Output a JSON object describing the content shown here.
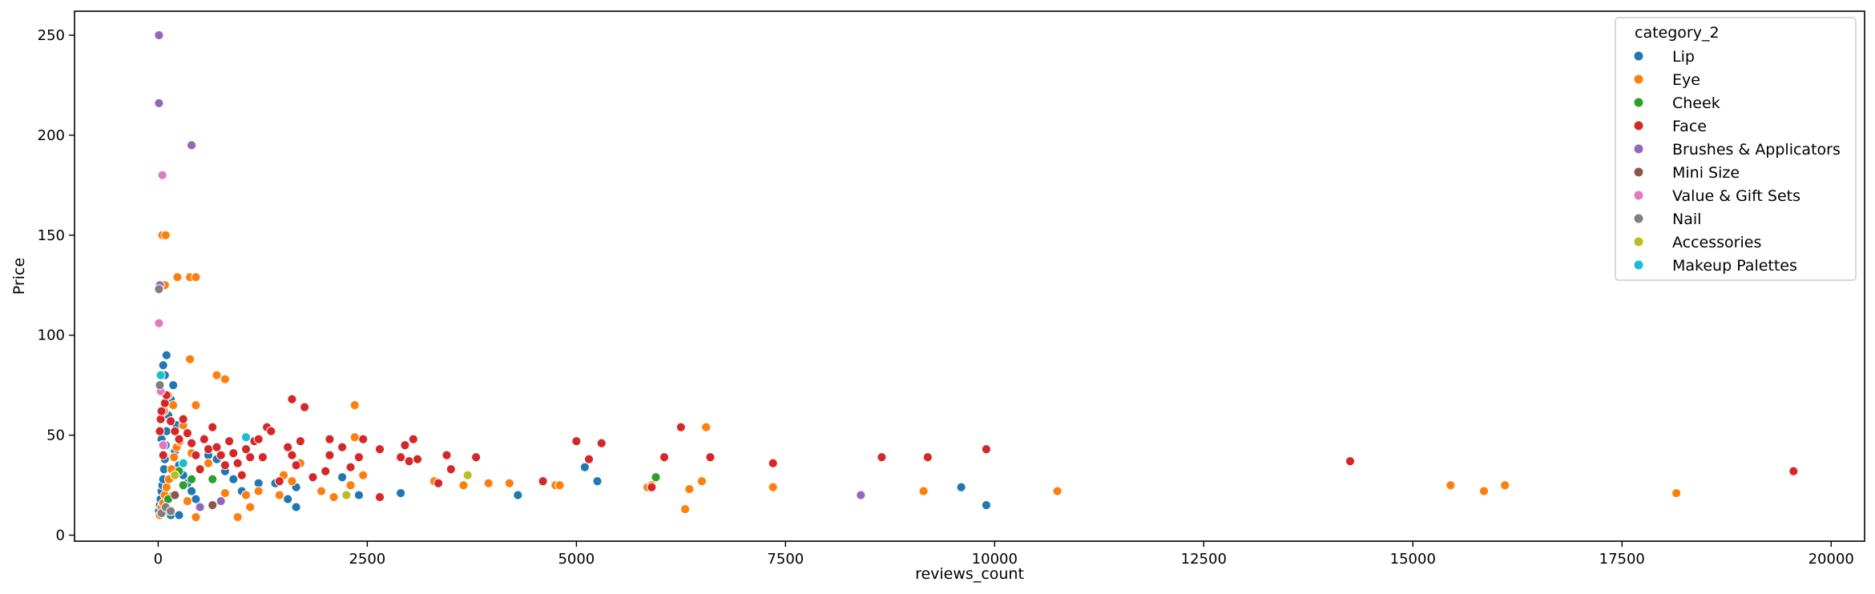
{
  "chart_data": {
    "type": "scatter",
    "title": "",
    "xlabel": "reviews_count",
    "ylabel": "Price",
    "xlim": [
      -1000,
      20400
    ],
    "ylim": [
      -3,
      262
    ],
    "xticks": [
      0,
      2500,
      5000,
      7500,
      10000,
      12500,
      15000,
      17500,
      20000
    ],
    "yticks": [
      0,
      50,
      100,
      150,
      200,
      250
    ],
    "grid": false,
    "legend": {
      "title": "category_2",
      "placement": "top-right"
    },
    "series": [
      {
        "name": "Lip",
        "color": "#1f77b4",
        "points": [
          [
            10,
            12
          ],
          [
            20,
            15
          ],
          [
            30,
            18
          ],
          [
            40,
            22
          ],
          [
            50,
            25
          ],
          [
            60,
            28
          ],
          [
            70,
            33
          ],
          [
            80,
            38
          ],
          [
            90,
            45
          ],
          [
            100,
            52
          ],
          [
            120,
            60
          ],
          [
            150,
            68
          ],
          [
            180,
            75
          ],
          [
            60,
            85
          ],
          [
            100,
            90
          ],
          [
            200,
            42
          ],
          [
            250,
            35
          ],
          [
            300,
            30
          ],
          [
            350,
            26
          ],
          [
            400,
            22
          ],
          [
            450,
            18
          ],
          [
            500,
            14
          ],
          [
            600,
            40
          ],
          [
            700,
            38
          ],
          [
            800,
            32
          ],
          [
            900,
            28
          ],
          [
            1000,
            22
          ],
          [
            1200,
            26
          ],
          [
            1400,
            26
          ],
          [
            1550,
            18
          ],
          [
            1650,
            14
          ],
          [
            1650,
            24
          ],
          [
            2200,
            29
          ],
          [
            2400,
            20
          ],
          [
            2900,
            21
          ],
          [
            4300,
            20
          ],
          [
            5100,
            34
          ],
          [
            5250,
            27
          ],
          [
            9600,
            24
          ],
          [
            9900,
            15
          ],
          [
            150,
            10
          ],
          [
            220,
            55
          ],
          [
            80,
            80
          ],
          [
            40,
            48
          ],
          [
            250,
            10
          ]
        ]
      },
      {
        "name": "Eye",
        "color": "#ff7f0e",
        "points": [
          [
            20,
            10
          ],
          [
            40,
            14
          ],
          [
            60,
            16
          ],
          [
            80,
            20
          ],
          [
            100,
            24
          ],
          [
            130,
            28
          ],
          [
            160,
            33
          ],
          [
            190,
            39
          ],
          [
            220,
            44
          ],
          [
            260,
            47
          ],
          [
            300,
            55
          ],
          [
            70,
            62
          ],
          [
            120,
            70
          ],
          [
            180,
            65
          ],
          [
            380,
            88
          ],
          [
            700,
            80
          ],
          [
            800,
            78
          ],
          [
            450,
            65
          ],
          [
            80,
            125
          ],
          [
            50,
            150
          ],
          [
            90,
            150
          ],
          [
            230,
            129
          ],
          [
            380,
            129
          ],
          [
            450,
            129
          ],
          [
            400,
            41
          ],
          [
            600,
            36
          ],
          [
            800,
            21
          ],
          [
            950,
            9
          ],
          [
            1050,
            20
          ],
          [
            1100,
            14
          ],
          [
            1200,
            22
          ],
          [
            1450,
            20
          ],
          [
            1500,
            30
          ],
          [
            1600,
            27
          ],
          [
            1700,
            36
          ],
          [
            1950,
            22
          ],
          [
            2100,
            19
          ],
          [
            2300,
            25
          ],
          [
            2350,
            65
          ],
          [
            2350,
            49
          ],
          [
            2450,
            30
          ],
          [
            3300,
            27
          ],
          [
            3650,
            25
          ],
          [
            3950,
            26
          ],
          [
            4200,
            26
          ],
          [
            4750,
            25
          ],
          [
            4800,
            25
          ],
          [
            5850,
            24
          ],
          [
            5900,
            25
          ],
          [
            6300,
            13
          ],
          [
            6350,
            23
          ],
          [
            6500,
            27
          ],
          [
            6550,
            54
          ],
          [
            7350,
            24
          ],
          [
            9150,
            22
          ],
          [
            10750,
            22
          ],
          [
            15450,
            25
          ],
          [
            15850,
            22
          ],
          [
            16100,
            25
          ],
          [
            18150,
            21
          ],
          [
            350,
            17
          ],
          [
            450,
            9
          ]
        ]
      },
      {
        "name": "Cheek",
        "color": "#2ca02c",
        "points": [
          [
            180,
            20
          ],
          [
            250,
            32
          ],
          [
            300,
            25
          ],
          [
            400,
            28
          ],
          [
            650,
            28
          ],
          [
            5950,
            29
          ],
          [
            120,
            18
          ]
        ]
      },
      {
        "name": "Face",
        "color": "#d62728",
        "points": [
          [
            20,
            52
          ],
          [
            30,
            58
          ],
          [
            40,
            62
          ],
          [
            50,
            45
          ],
          [
            60,
            40
          ],
          [
            80,
            66
          ],
          [
            100,
            70
          ],
          [
            150,
            57
          ],
          [
            200,
            52
          ],
          [
            250,
            48
          ],
          [
            300,
            58
          ],
          [
            350,
            51
          ],
          [
            400,
            46
          ],
          [
            450,
            40
          ],
          [
            500,
            33
          ],
          [
            550,
            48
          ],
          [
            600,
            43
          ],
          [
            650,
            54
          ],
          [
            700,
            44
          ],
          [
            750,
            40
          ],
          [
            800,
            35
          ],
          [
            850,
            47
          ],
          [
            900,
            41
          ],
          [
            950,
            36
          ],
          [
            1000,
            30
          ],
          [
            1050,
            43
          ],
          [
            1100,
            39
          ],
          [
            1150,
            47
          ],
          [
            1200,
            48
          ],
          [
            1250,
            39
          ],
          [
            1300,
            54
          ],
          [
            1350,
            52
          ],
          [
            1450,
            27
          ],
          [
            1550,
            44
          ],
          [
            1600,
            68
          ],
          [
            1600,
            40
          ],
          [
            1650,
            35
          ],
          [
            1700,
            47
          ],
          [
            1750,
            64
          ],
          [
            1850,
            29
          ],
          [
            2000,
            32
          ],
          [
            2050,
            48
          ],
          [
            2050,
            40
          ],
          [
            2200,
            44
          ],
          [
            2300,
            34
          ],
          [
            2400,
            39
          ],
          [
            2450,
            48
          ],
          [
            2650,
            19
          ],
          [
            2650,
            43
          ],
          [
            2900,
            39
          ],
          [
            2950,
            45
          ],
          [
            3050,
            48
          ],
          [
            3000,
            37
          ],
          [
            3100,
            38
          ],
          [
            3350,
            26
          ],
          [
            3450,
            40
          ],
          [
            3500,
            33
          ],
          [
            3800,
            39
          ],
          [
            4600,
            27
          ],
          [
            5000,
            47
          ],
          [
            5150,
            38
          ],
          [
            5300,
            46
          ],
          [
            5900,
            24
          ],
          [
            6050,
            39
          ],
          [
            6250,
            54
          ],
          [
            6600,
            39
          ],
          [
            7350,
            36
          ],
          [
            8650,
            39
          ],
          [
            9200,
            39
          ],
          [
            9900,
            43
          ],
          [
            14250,
            37
          ],
          [
            19550,
            32
          ]
        ]
      },
      {
        "name": "Brushes & Applicators",
        "color": "#9467bd",
        "points": [
          [
            10,
            250
          ],
          [
            10,
            216
          ],
          [
            400,
            195
          ],
          [
            20,
            125
          ],
          [
            8400,
            20
          ],
          [
            750,
            17
          ],
          [
            500,
            14
          ]
        ]
      },
      {
        "name": "Mini Size",
        "color": "#8c564b",
        "points": [
          [
            80,
            12
          ],
          [
            650,
            15
          ],
          [
            200,
            20
          ]
        ]
      },
      {
        "name": "Value & Gift Sets",
        "color": "#e377c2",
        "points": [
          [
            50,
            180
          ],
          [
            10,
            106
          ],
          [
            30,
            72
          ],
          [
            60,
            45
          ]
        ]
      },
      {
        "name": "Nail",
        "color": "#7f7f7f",
        "points": [
          [
            10,
            123
          ],
          [
            20,
            75
          ],
          [
            40,
            11
          ],
          [
            90,
            14
          ],
          [
            150,
            12
          ]
        ]
      },
      {
        "name": "Accessories",
        "color": "#bcbd22",
        "points": [
          [
            2250,
            20
          ],
          [
            3700,
            30
          ],
          [
            200,
            30
          ]
        ]
      },
      {
        "name": "Makeup Palettes",
        "color": "#17becf",
        "points": [
          [
            1050,
            49
          ],
          [
            30,
            80
          ],
          [
            300,
            36
          ]
        ]
      }
    ]
  }
}
